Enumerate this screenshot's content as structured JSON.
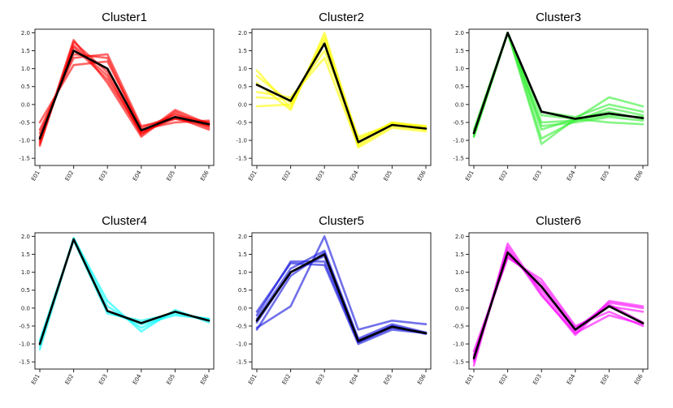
{
  "chart_data": [
    {
      "type": "line",
      "title": "Cluster1",
      "color": "#ff0000",
      "categories": [
        "E01",
        "E02",
        "E03",
        "E04",
        "E05",
        "E06"
      ],
      "ylim": [
        -1.7,
        2.1
      ],
      "yticks": [
        "-1.5",
        "-1.0",
        "-0.5",
        "0.0",
        "0.5",
        "1.0",
        "1.5",
        "2.0"
      ],
      "xlabel": "",
      "ylabel": "",
      "grid": false,
      "members": [
        [
          -1.1,
          1.8,
          0.6,
          -0.9,
          -0.2,
          -0.6
        ],
        [
          -0.7,
          1.3,
          1.4,
          -0.6,
          -0.4,
          -0.5
        ],
        [
          -1.0,
          1.6,
          0.7,
          -0.8,
          -0.35,
          -0.7
        ],
        [
          -0.8,
          1.4,
          1.3,
          -0.7,
          -0.5,
          -0.45
        ],
        [
          -1.15,
          1.75,
          0.9,
          -0.85,
          -0.15,
          -0.55
        ],
        [
          -0.5,
          1.1,
          1.2,
          -0.65,
          -0.3,
          -0.5
        ],
        [
          -0.9,
          1.5,
          1.0,
          -0.75,
          -0.4,
          -0.6
        ],
        [
          -1.05,
          1.65,
          0.8,
          -0.8,
          -0.25,
          -0.65
        ]
      ],
      "center": [
        -0.95,
        1.5,
        1.0,
        -0.72,
        -0.35,
        -0.55
      ]
    },
    {
      "type": "line",
      "title": "Cluster2",
      "color": "#ffff00",
      "categories": [
        "E01",
        "E02",
        "E03",
        "E04",
        "E05",
        "E06"
      ],
      "ylim": [
        -1.7,
        2.1
      ],
      "yticks": [
        "-1.5",
        "-1.0",
        "-0.5",
        "0.0",
        "0.5",
        "1.0",
        "1.5",
        "2.0"
      ],
      "xlabel": "",
      "ylabel": "",
      "grid": false,
      "members": [
        [
          0.95,
          -0.1,
          1.9,
          -1.1,
          -0.5,
          -0.6
        ],
        [
          0.2,
          0.15,
          1.5,
          -0.9,
          -0.55,
          -0.7
        ],
        [
          -0.05,
          0.0,
          1.7,
          -1.2,
          -0.65,
          -0.75
        ],
        [
          0.6,
          -0.15,
          2.0,
          -1.0,
          -0.5,
          -0.65
        ],
        [
          0.35,
          0.2,
          1.3,
          -1.15,
          -0.6,
          -0.7
        ],
        [
          0.8,
          0.05,
          1.8,
          -0.95,
          -0.55,
          -0.6
        ]
      ],
      "center": [
        0.55,
        0.1,
        1.7,
        -1.05,
        -0.57,
        -0.67
      ]
    },
    {
      "type": "line",
      "title": "Cluster3",
      "color": "#33ee33",
      "categories": [
        "E01",
        "E02",
        "E03",
        "E04",
        "E05",
        "E06"
      ],
      "ylim": [
        -1.7,
        2.1
      ],
      "yticks": [
        "-1.5",
        "-1.0",
        "-0.5",
        "0.0",
        "0.5",
        "1.0",
        "1.5",
        "2.0"
      ],
      "xlabel": "",
      "ylabel": "",
      "grid": false,
      "members": [
        [
          -0.9,
          2.0,
          -1.1,
          -0.4,
          -0.2,
          -0.4
        ],
        [
          -0.7,
          2.0,
          -0.5,
          -0.45,
          -0.3,
          -0.35
        ],
        [
          -0.8,
          2.0,
          -0.3,
          -0.4,
          0.2,
          -0.05
        ],
        [
          -0.75,
          2.0,
          -0.7,
          -0.4,
          -0.5,
          -0.55
        ],
        [
          -0.85,
          2.0,
          -0.95,
          -0.45,
          -0.1,
          -0.3
        ],
        [
          -0.8,
          2.0,
          -0.2,
          -0.35,
          0.0,
          -0.2
        ],
        [
          -0.9,
          2.0,
          -0.6,
          -0.5,
          -0.35,
          -0.45
        ]
      ],
      "center": [
        -0.8,
        2.0,
        -0.2,
        -0.4,
        -0.25,
        -0.38
      ]
    },
    {
      "type": "line",
      "title": "Cluster4",
      "color": "#00ffff",
      "categories": [
        "E01",
        "E02",
        "E03",
        "E04",
        "E05",
        "E06"
      ],
      "ylim": [
        -1.7,
        2.1
      ],
      "yticks": [
        "-1.5",
        "-1.0",
        "-0.5",
        "0.0",
        "0.5",
        "1.0",
        "1.5",
        "2.0"
      ],
      "xlabel": "",
      "ylabel": "",
      "grid": false,
      "members": [
        [
          -1.15,
          1.95,
          0.2,
          -0.65,
          -0.05,
          -0.4
        ],
        [
          -0.9,
          1.9,
          -0.15,
          -0.35,
          -0.15,
          -0.3
        ],
        [
          -1.05,
          1.95,
          0.05,
          -0.55,
          -0.1,
          -0.35
        ],
        [
          -0.95,
          1.9,
          -0.1,
          -0.45,
          -0.2,
          -0.3
        ]
      ],
      "center": [
        -1.0,
        1.92,
        -0.08,
        -0.42,
        -0.1,
        -0.35
      ]
    },
    {
      "type": "line",
      "title": "Cluster5",
      "color": "#1010dd",
      "categories": [
        "E01",
        "E02",
        "E03",
        "E04",
        "E05",
        "E06"
      ],
      "ylim": [
        -1.7,
        2.1
      ],
      "yticks": [
        "-1.5",
        "-1.0",
        "-0.5",
        "0.0",
        "0.5",
        "1.0",
        "1.5",
        "2.0"
      ],
      "xlabel": "",
      "ylabel": "",
      "grid": false,
      "members": [
        [
          -0.55,
          0.05,
          2.0,
          -0.6,
          -0.35,
          -0.45
        ],
        [
          -0.2,
          1.3,
          1.3,
          -0.95,
          -0.55,
          -0.7
        ],
        [
          -0.6,
          0.9,
          1.55,
          -0.9,
          -0.5,
          -0.72
        ],
        [
          -0.1,
          1.25,
          1.2,
          -1.0,
          -0.6,
          -0.7
        ],
        [
          -0.4,
          1.0,
          1.45,
          -0.95,
          -0.5,
          -0.7
        ],
        [
          -0.3,
          1.1,
          1.6,
          -0.85,
          -0.45,
          -0.68
        ]
      ],
      "center": [
        -0.35,
        1.0,
        1.5,
        -0.92,
        -0.52,
        -0.7
      ]
    },
    {
      "type": "line",
      "title": "Cluster6",
      "color": "#ff00ff",
      "categories": [
        "E01",
        "E02",
        "E03",
        "E04",
        "E05",
        "E06"
      ],
      "ylim": [
        -1.7,
        2.1
      ],
      "yticks": [
        "-1.5",
        "-1.0",
        "-0.5",
        "0.0",
        "0.5",
        "1.0",
        "1.5",
        "2.0"
      ],
      "xlabel": "",
      "ylabel": "",
      "grid": false,
      "members": [
        [
          -1.6,
          1.8,
          0.4,
          -0.75,
          0.2,
          0.05
        ],
        [
          -1.2,
          1.4,
          0.8,
          -0.5,
          -0.1,
          -0.5
        ],
        [
          -1.5,
          1.6,
          0.5,
          -0.65,
          0.1,
          -0.4
        ],
        [
          -1.3,
          1.45,
          0.7,
          -0.55,
          0.05,
          -0.1
        ],
        [
          -1.45,
          1.7,
          0.35,
          -0.7,
          -0.2,
          -0.45
        ],
        [
          -1.35,
          1.5,
          0.6,
          -0.6,
          0.15,
          0.0
        ]
      ],
      "center": [
        -1.4,
        1.55,
        0.6,
        -0.6,
        0.05,
        -0.42
      ]
    }
  ]
}
